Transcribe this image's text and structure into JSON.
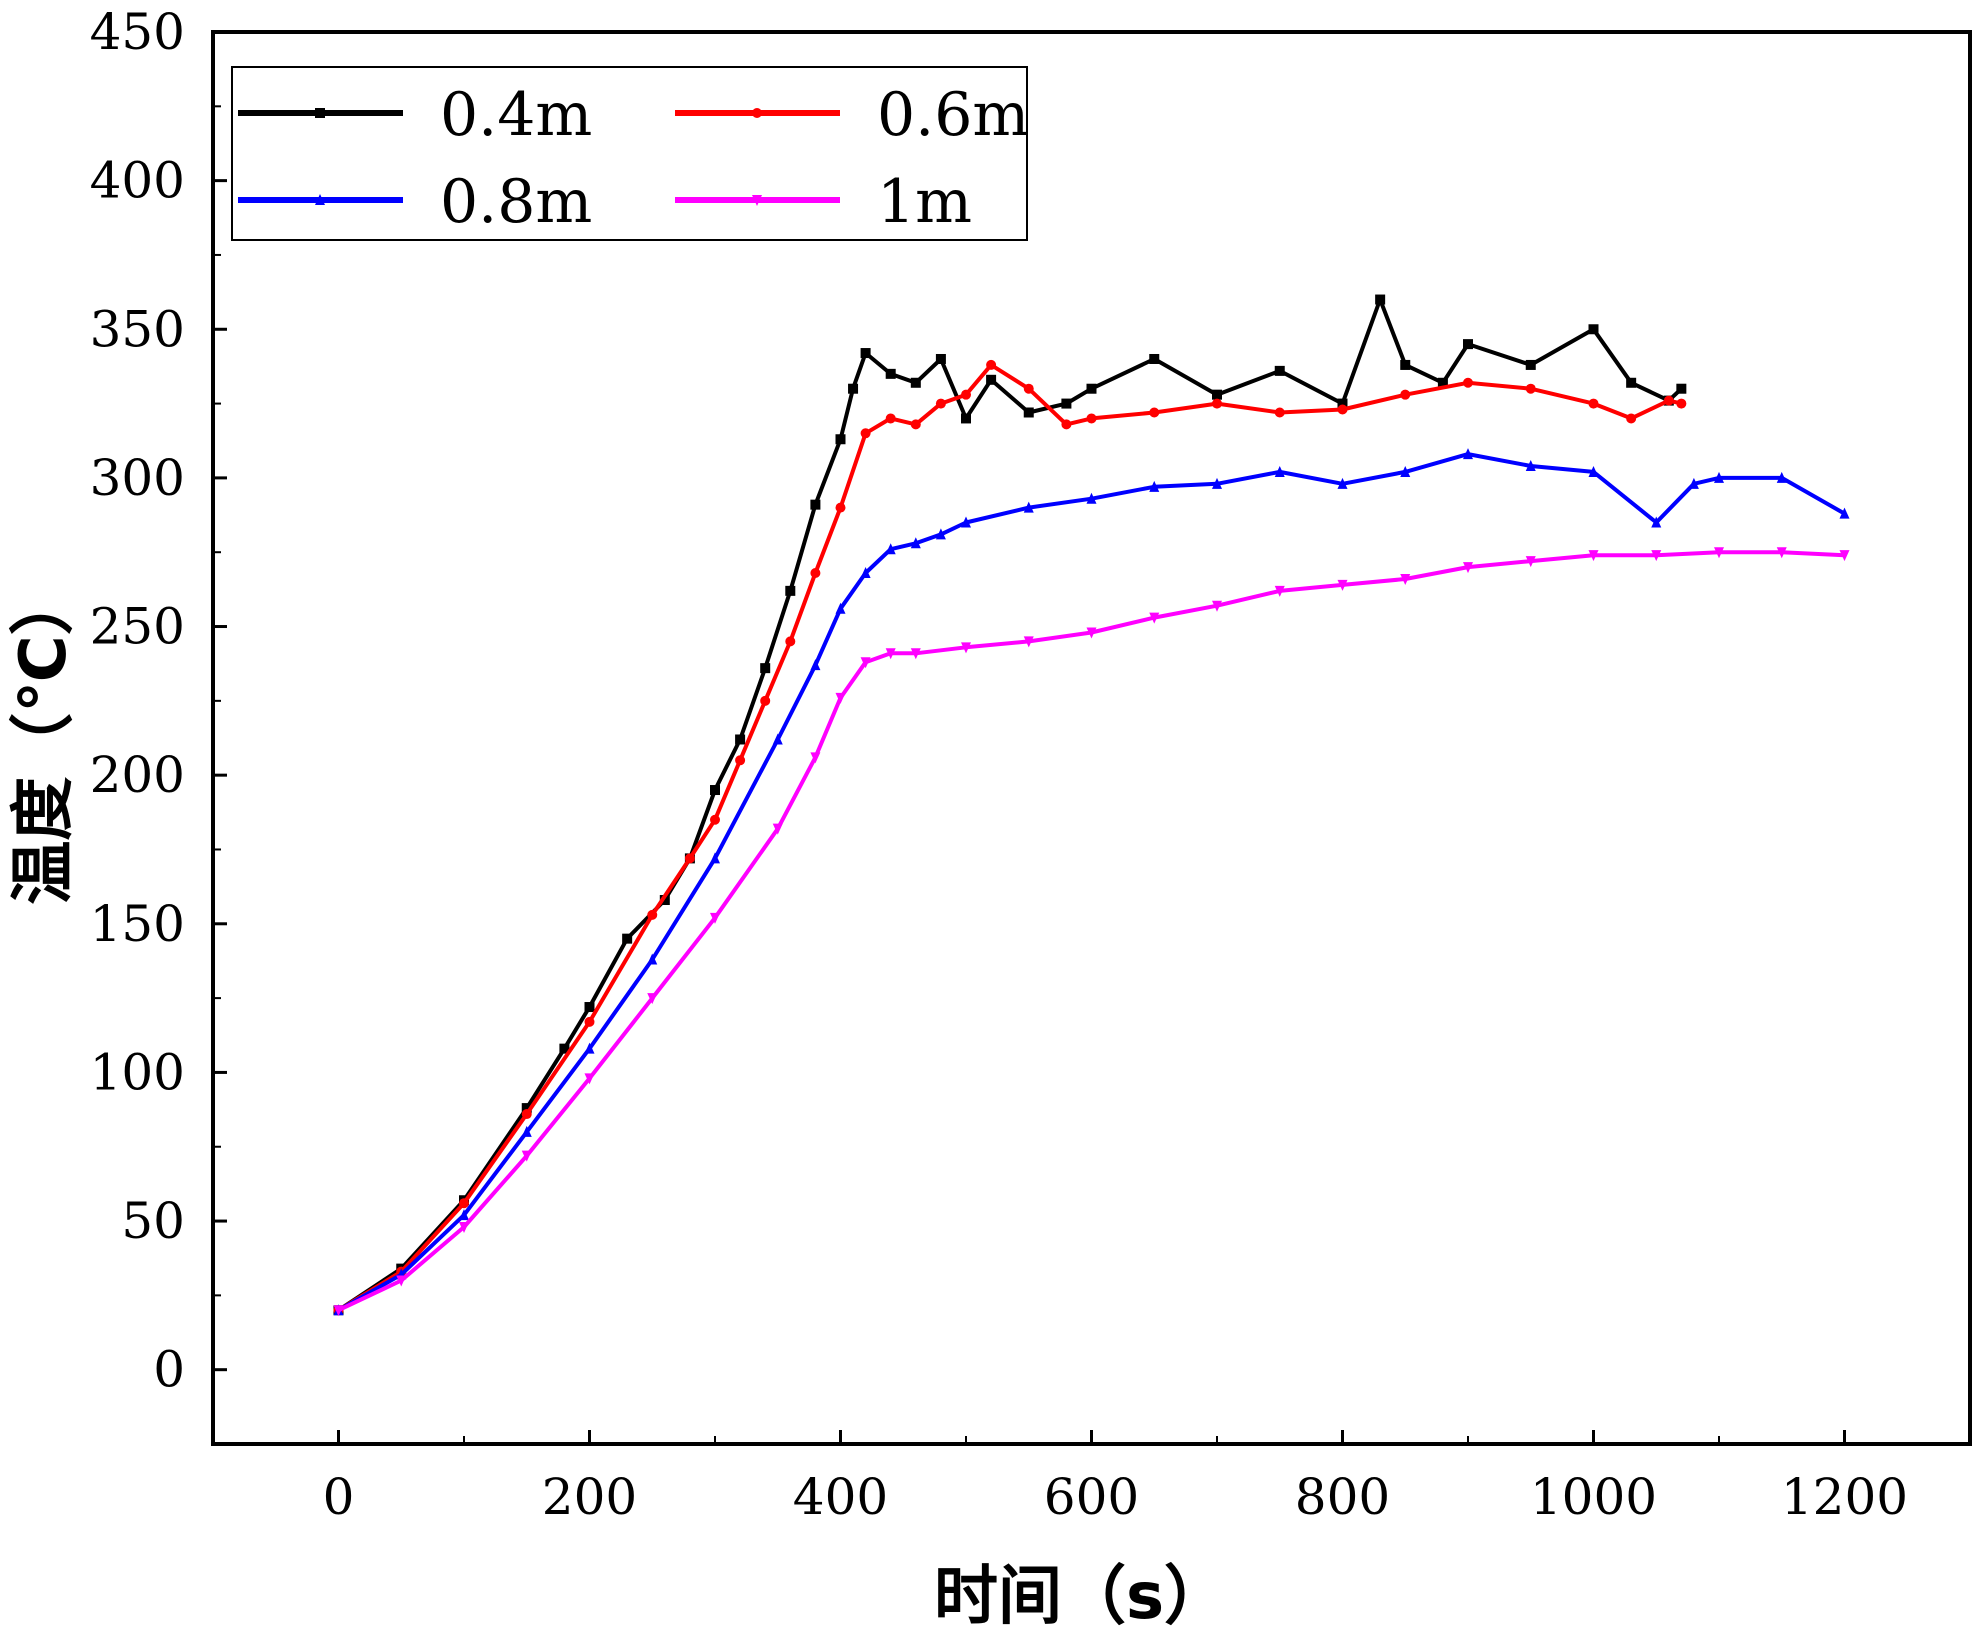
{
  "chart_data": {
    "type": "line",
    "title": "",
    "xlabel": "时间（s）",
    "ylabel": "温度（℃）",
    "xlim": [
      -100,
      1300
    ],
    "ylim": [
      -25,
      450
    ],
    "xticks": [
      0,
      200,
      400,
      600,
      800,
      1000,
      1200
    ],
    "xtick_labels": [
      "0",
      "200",
      "400",
      "600",
      "800",
      "1000",
      "1200"
    ],
    "yticks": [
      0,
      50,
      100,
      150,
      200,
      250,
      300,
      350,
      400,
      450
    ],
    "ytick_labels": [
      "0",
      "50",
      "100",
      "150",
      "200",
      "250",
      "300",
      "350",
      "400",
      "450"
    ],
    "legend_position": "top-left",
    "series": [
      {
        "name": "0.4m",
        "color": "#000000",
        "marker": "square",
        "x": [
          0,
          50,
          100,
          150,
          180,
          200,
          230,
          260,
          280,
          300,
          320,
          340,
          360,
          380,
          400,
          410,
          420,
          440,
          460,
          480,
          500,
          520,
          550,
          580,
          600,
          650,
          700,
          750,
          800,
          830,
          850,
          880,
          900,
          950,
          1000,
          1030,
          1060,
          1070
        ],
        "y": [
          20,
          34,
          57,
          88,
          108,
          122,
          145,
          158,
          172,
          195,
          212,
          236,
          262,
          291,
          313,
          330,
          342,
          335,
          332,
          340,
          320,
          333,
          322,
          325,
          330,
          340,
          328,
          336,
          325,
          360,
          338,
          332,
          345,
          338,
          350,
          332,
          326,
          330
        ]
      },
      {
        "name": "0.6m",
        "color": "#ff0000",
        "marker": "circle",
        "x": [
          0,
          50,
          100,
          150,
          200,
          250,
          280,
          300,
          320,
          340,
          360,
          380,
          400,
          420,
          440,
          460,
          480,
          500,
          520,
          550,
          580,
          600,
          650,
          700,
          750,
          800,
          850,
          900,
          950,
          1000,
          1030,
          1060,
          1070
        ],
        "y": [
          20,
          33,
          56,
          86,
          117,
          153,
          172,
          185,
          205,
          225,
          245,
          268,
          290,
          315,
          320,
          318,
          325,
          328,
          338,
          330,
          318,
          320,
          322,
          325,
          322,
          323,
          328,
          332,
          330,
          325,
          320,
          326,
          325
        ]
      },
      {
        "name": "0.8m",
        "color": "#0000ff",
        "marker": "triangle-up",
        "x": [
          0,
          50,
          100,
          150,
          200,
          250,
          300,
          350,
          380,
          400,
          420,
          440,
          460,
          480,
          500,
          550,
          600,
          650,
          700,
          750,
          800,
          850,
          900,
          950,
          1000,
          1050,
          1080,
          1100,
          1150,
          1200
        ],
        "y": [
          20,
          32,
          52,
          80,
          108,
          138,
          172,
          212,
          237,
          256,
          268,
          276,
          278,
          281,
          285,
          290,
          293,
          297,
          298,
          302,
          298,
          302,
          308,
          304,
          302,
          285,
          298,
          300,
          300,
          288
        ]
      },
      {
        "name": "1m",
        "color": "#ff00ff",
        "marker": "triangle-down",
        "x": [
          0,
          50,
          100,
          150,
          200,
          250,
          300,
          350,
          380,
          400,
          420,
          440,
          460,
          500,
          550,
          600,
          650,
          700,
          750,
          800,
          850,
          900,
          950,
          1000,
          1050,
          1100,
          1150,
          1200
        ],
        "y": [
          20,
          30,
          48,
          72,
          98,
          125,
          152,
          182,
          206,
          226,
          238,
          241,
          241,
          243,
          245,
          248,
          253,
          257,
          262,
          264,
          266,
          270,
          272,
          274,
          274,
          275,
          275,
          274
        ]
      }
    ]
  }
}
